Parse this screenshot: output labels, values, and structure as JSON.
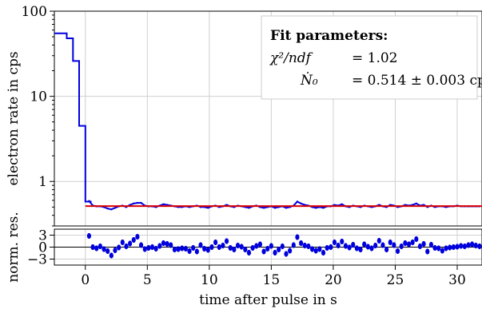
{
  "chart_data": [
    {
      "type": "line",
      "xlabel": "",
      "ylabel": "electron rate in cps",
      "yscale": "log",
      "xlim": [
        -2.5,
        32
      ],
      "ylim": [
        0.3,
        100
      ],
      "grid": true,
      "y_ticks": [
        {
          "value": 1,
          "label": "1"
        },
        {
          "value": 10,
          "label": "10"
        },
        {
          "value": 100,
          "label": "100"
        }
      ],
      "series": [
        {
          "type": "step",
          "color": "#0000dd",
          "x": [
            -2.5,
            -2.0,
            -1.5,
            -1.0,
            -0.5,
            0.0,
            0.5
          ],
          "y": [
            55,
            55,
            48,
            26,
            4.5,
            0.58,
            0.5
          ]
        },
        {
          "type": "line",
          "color": "#0000dd",
          "x": [
            0.3,
            0.6,
            0.9,
            1.2,
            1.5,
            1.8,
            2.1,
            2.4,
            2.7,
            3.0,
            3.3,
            3.6,
            3.9,
            4.2,
            4.5,
            4.8,
            5.1,
            5.4,
            5.7,
            6.0,
            6.3,
            6.6,
            6.9,
            7.2,
            7.5,
            7.8,
            8.1,
            8.4,
            8.7,
            9.0,
            9.3,
            9.6,
            9.9,
            10.2,
            10.5,
            10.8,
            11.1,
            11.4,
            11.7,
            12.0,
            12.3,
            12.6,
            12.9,
            13.2,
            13.5,
            13.8,
            14.1,
            14.4,
            14.7,
            15.0,
            15.3,
            15.6,
            15.9,
            16.2,
            16.5,
            16.8,
            17.1,
            17.4,
            17.7,
            18.0,
            18.3,
            18.6,
            18.9,
            19.2,
            19.5,
            19.8,
            20.1,
            20.4,
            20.7,
            21.0,
            21.3,
            21.6,
            21.9,
            22.2,
            22.5,
            22.8,
            23.1,
            23.4,
            23.7,
            24.0,
            24.3,
            24.6,
            24.9,
            25.2,
            25.5,
            25.8,
            26.1,
            26.4,
            26.7,
            27.0,
            27.3,
            27.6,
            27.9,
            28.2,
            28.5,
            28.8,
            29.1,
            29.4,
            29.7,
            30.0,
            30.3,
            30.6,
            30.9,
            31.2,
            31.5,
            31.8
          ],
          "y": [
            0.59,
            0.52,
            0.51,
            0.51,
            0.5,
            0.48,
            0.47,
            0.49,
            0.51,
            0.52,
            0.5,
            0.53,
            0.55,
            0.56,
            0.56,
            0.52,
            0.51,
            0.51,
            0.5,
            0.52,
            0.54,
            0.53,
            0.52,
            0.51,
            0.5,
            0.5,
            0.51,
            0.5,
            0.51,
            0.52,
            0.5,
            0.5,
            0.49,
            0.51,
            0.52,
            0.5,
            0.51,
            0.53,
            0.51,
            0.5,
            0.52,
            0.51,
            0.5,
            0.49,
            0.51,
            0.52,
            0.5,
            0.49,
            0.5,
            0.51,
            0.49,
            0.5,
            0.51,
            0.49,
            0.5,
            0.52,
            0.58,
            0.55,
            0.53,
            0.52,
            0.5,
            0.49,
            0.5,
            0.49,
            0.51,
            0.51,
            0.53,
            0.52,
            0.54,
            0.51,
            0.5,
            0.52,
            0.51,
            0.5,
            0.52,
            0.51,
            0.5,
            0.51,
            0.53,
            0.51,
            0.5,
            0.53,
            0.52,
            0.5,
            0.51,
            0.53,
            0.52,
            0.53,
            0.55,
            0.52,
            0.53,
            0.5,
            0.52,
            0.5,
            0.51,
            0.51,
            0.5,
            0.51,
            0.51,
            0.52,
            0.51,
            0.51,
            0.51,
            0.51,
            0.51,
            0.51
          ]
        },
        {
          "type": "fit",
          "color": "#dd0000",
          "x": [
            0.0,
            32.0
          ],
          "y": [
            0.514,
            0.514
          ]
        }
      ],
      "fit_box": {
        "title": "Fit parameters:",
        "chi2_label": "χ²/ndf",
        "chi2_value": "= 1.02",
        "rate_label": "Ṅ₀",
        "rate_value": "= 0.514 ± 0.003 cps"
      }
    },
    {
      "type": "scatter",
      "xlabel": "time after pulse in s",
      "ylabel": "norm. res.",
      "xlim": [
        -2.5,
        32
      ],
      "ylim": [
        -4.5,
        4.5
      ],
      "grid": true,
      "y_ticks": [
        {
          "value": -3,
          "label": "−3"
        },
        {
          "value": 0,
          "label": "0"
        },
        {
          "value": 3,
          "label": "3"
        }
      ],
      "x_ticks": [
        {
          "value": 0,
          "label": "0"
        },
        {
          "value": 5,
          "label": "5"
        },
        {
          "value": 10,
          "label": "10"
        },
        {
          "value": 15,
          "label": "15"
        },
        {
          "value": 20,
          "label": "20"
        },
        {
          "value": 25,
          "label": "25"
        },
        {
          "value": 30,
          "label": "30"
        }
      ],
      "series": [
        {
          "color": "#0000dd",
          "x": [
            0.3,
            0.6,
            0.9,
            1.2,
            1.5,
            1.8,
            2.1,
            2.4,
            2.7,
            3.0,
            3.3,
            3.6,
            3.9,
            4.2,
            4.5,
            4.8,
            5.1,
            5.4,
            5.7,
            6.0,
            6.3,
            6.6,
            6.9,
            7.2,
            7.5,
            7.8,
            8.1,
            8.4,
            8.7,
            9.0,
            9.3,
            9.6,
            9.9,
            10.2,
            10.5,
            10.8,
            11.1,
            11.4,
            11.7,
            12.0,
            12.3,
            12.6,
            12.9,
            13.2,
            13.5,
            13.8,
            14.1,
            14.4,
            14.7,
            15.0,
            15.3,
            15.6,
            15.9,
            16.2,
            16.5,
            16.8,
            17.1,
            17.4,
            17.7,
            18.0,
            18.3,
            18.6,
            18.9,
            19.2,
            19.5,
            19.8,
            20.1,
            20.4,
            20.7,
            21.0,
            21.3,
            21.6,
            21.9,
            22.2,
            22.5,
            22.8,
            23.1,
            23.4,
            23.7,
            24.0,
            24.3,
            24.6,
            24.9,
            25.2,
            25.5,
            25.8,
            26.1,
            26.4,
            26.7,
            27.0,
            27.3,
            27.6,
            27.9,
            28.2,
            28.5,
            28.8,
            29.1,
            29.4,
            29.7,
            30.0,
            30.3,
            30.6,
            30.9,
            31.2,
            31.5,
            31.8
          ],
          "y": [
            2.8,
            0.0,
            -0.3,
            0.2,
            -0.5,
            -1.0,
            -2.1,
            -0.8,
            -0.1,
            1.2,
            0.2,
            0.9,
            1.8,
            2.6,
            0.5,
            -0.5,
            -0.2,
            0.0,
            -0.4,
            0.3,
            1.0,
            0.8,
            0.5,
            -0.6,
            -0.5,
            -0.3,
            -0.4,
            -1.0,
            -0.2,
            -1.1,
            0.5,
            -0.4,
            -0.7,
            0.0,
            1.2,
            0.0,
            0.4,
            1.5,
            -0.2,
            -0.6,
            0.4,
            0.1,
            -0.6,
            -1.4,
            -0.2,
            0.3,
            0.7,
            -1.1,
            -0.4,
            0.3,
            -1.4,
            -0.6,
            0.2,
            -1.7,
            -0.9,
            0.5,
            2.5,
            1.0,
            0.4,
            0.2,
            -0.5,
            -0.9,
            -0.5,
            -1.4,
            -0.2,
            0.0,
            1.2,
            0.4,
            1.4,
            0.3,
            -0.1,
            0.6,
            -0.3,
            -0.6,
            0.7,
            0.1,
            -0.3,
            0.4,
            1.6,
            0.5,
            -0.6,
            1.2,
            0.5,
            -1.0,
            0.2,
            1.0,
            0.7,
            1.2,
            2.0,
            0.2,
            0.8,
            -1.1,
            0.6,
            -0.2,
            -0.3,
            -0.9,
            -0.3,
            -0.1,
            0.0,
            0.1,
            0.3,
            0.2,
            0.5,
            0.7,
            0.4,
            0.2
          ],
          "yerr": 0.65
        }
      ]
    }
  ]
}
